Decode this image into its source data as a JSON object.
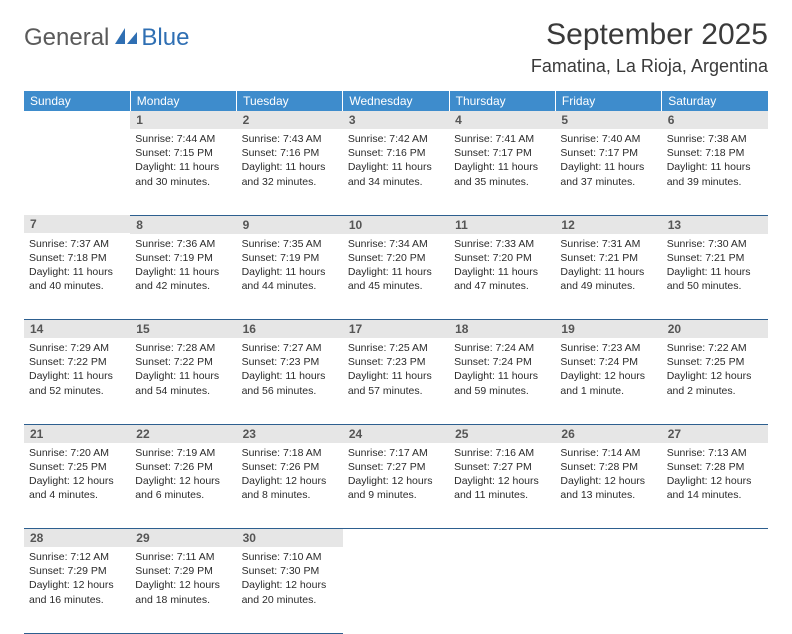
{
  "brand": {
    "text1": "General",
    "text2": "Blue"
  },
  "title": "September 2025",
  "location": "Famatina, La Rioja, Argentina",
  "colors": {
    "header_bg": "#3e8ccc",
    "header_text": "#ffffff",
    "daynum_bg": "#e6e6e6",
    "daynum_text": "#555555",
    "border": "#2d5f8f",
    "brand_gray": "#5a5a5a",
    "brand_blue": "#2f6fb3"
  },
  "typography": {
    "title_fontsize": 30,
    "location_fontsize": 18,
    "weekday_fontsize": 12,
    "daynum_fontsize": 12,
    "cell_fontsize": 10.5
  },
  "weekdays": [
    "Sunday",
    "Monday",
    "Tuesday",
    "Wednesday",
    "Thursday",
    "Friday",
    "Saturday"
  ],
  "weeks": [
    [
      null,
      {
        "n": "1",
        "sr": "Sunrise: 7:44 AM",
        "ss": "Sunset: 7:15 PM",
        "dl": "Daylight: 11 hours and 30 minutes."
      },
      {
        "n": "2",
        "sr": "Sunrise: 7:43 AM",
        "ss": "Sunset: 7:16 PM",
        "dl": "Daylight: 11 hours and 32 minutes."
      },
      {
        "n": "3",
        "sr": "Sunrise: 7:42 AM",
        "ss": "Sunset: 7:16 PM",
        "dl": "Daylight: 11 hours and 34 minutes."
      },
      {
        "n": "4",
        "sr": "Sunrise: 7:41 AM",
        "ss": "Sunset: 7:17 PM",
        "dl": "Daylight: 11 hours and 35 minutes."
      },
      {
        "n": "5",
        "sr": "Sunrise: 7:40 AM",
        "ss": "Sunset: 7:17 PM",
        "dl": "Daylight: 11 hours and 37 minutes."
      },
      {
        "n": "6",
        "sr": "Sunrise: 7:38 AM",
        "ss": "Sunset: 7:18 PM",
        "dl": "Daylight: 11 hours and 39 minutes."
      }
    ],
    [
      {
        "n": "7",
        "sr": "Sunrise: 7:37 AM",
        "ss": "Sunset: 7:18 PM",
        "dl": "Daylight: 11 hours and 40 minutes."
      },
      {
        "n": "8",
        "sr": "Sunrise: 7:36 AM",
        "ss": "Sunset: 7:19 PM",
        "dl": "Daylight: 11 hours and 42 minutes."
      },
      {
        "n": "9",
        "sr": "Sunrise: 7:35 AM",
        "ss": "Sunset: 7:19 PM",
        "dl": "Daylight: 11 hours and 44 minutes."
      },
      {
        "n": "10",
        "sr": "Sunrise: 7:34 AM",
        "ss": "Sunset: 7:20 PM",
        "dl": "Daylight: 11 hours and 45 minutes."
      },
      {
        "n": "11",
        "sr": "Sunrise: 7:33 AM",
        "ss": "Sunset: 7:20 PM",
        "dl": "Daylight: 11 hours and 47 minutes."
      },
      {
        "n": "12",
        "sr": "Sunrise: 7:31 AM",
        "ss": "Sunset: 7:21 PM",
        "dl": "Daylight: 11 hours and 49 minutes."
      },
      {
        "n": "13",
        "sr": "Sunrise: 7:30 AM",
        "ss": "Sunset: 7:21 PM",
        "dl": "Daylight: 11 hours and 50 minutes."
      }
    ],
    [
      {
        "n": "14",
        "sr": "Sunrise: 7:29 AM",
        "ss": "Sunset: 7:22 PM",
        "dl": "Daylight: 11 hours and 52 minutes."
      },
      {
        "n": "15",
        "sr": "Sunrise: 7:28 AM",
        "ss": "Sunset: 7:22 PM",
        "dl": "Daylight: 11 hours and 54 minutes."
      },
      {
        "n": "16",
        "sr": "Sunrise: 7:27 AM",
        "ss": "Sunset: 7:23 PM",
        "dl": "Daylight: 11 hours and 56 minutes."
      },
      {
        "n": "17",
        "sr": "Sunrise: 7:25 AM",
        "ss": "Sunset: 7:23 PM",
        "dl": "Daylight: 11 hours and 57 minutes."
      },
      {
        "n": "18",
        "sr": "Sunrise: 7:24 AM",
        "ss": "Sunset: 7:24 PM",
        "dl": "Daylight: 11 hours and 59 minutes."
      },
      {
        "n": "19",
        "sr": "Sunrise: 7:23 AM",
        "ss": "Sunset: 7:24 PM",
        "dl": "Daylight: 12 hours and 1 minute."
      },
      {
        "n": "20",
        "sr": "Sunrise: 7:22 AM",
        "ss": "Sunset: 7:25 PM",
        "dl": "Daylight: 12 hours and 2 minutes."
      }
    ],
    [
      {
        "n": "21",
        "sr": "Sunrise: 7:20 AM",
        "ss": "Sunset: 7:25 PM",
        "dl": "Daylight: 12 hours and 4 minutes."
      },
      {
        "n": "22",
        "sr": "Sunrise: 7:19 AM",
        "ss": "Sunset: 7:26 PM",
        "dl": "Daylight: 12 hours and 6 minutes."
      },
      {
        "n": "23",
        "sr": "Sunrise: 7:18 AM",
        "ss": "Sunset: 7:26 PM",
        "dl": "Daylight: 12 hours and 8 minutes."
      },
      {
        "n": "24",
        "sr": "Sunrise: 7:17 AM",
        "ss": "Sunset: 7:27 PM",
        "dl": "Daylight: 12 hours and 9 minutes."
      },
      {
        "n": "25",
        "sr": "Sunrise: 7:16 AM",
        "ss": "Sunset: 7:27 PM",
        "dl": "Daylight: 12 hours and 11 minutes."
      },
      {
        "n": "26",
        "sr": "Sunrise: 7:14 AM",
        "ss": "Sunset: 7:28 PM",
        "dl": "Daylight: 12 hours and 13 minutes."
      },
      {
        "n": "27",
        "sr": "Sunrise: 7:13 AM",
        "ss": "Sunset: 7:28 PM",
        "dl": "Daylight: 12 hours and 14 minutes."
      }
    ],
    [
      {
        "n": "28",
        "sr": "Sunrise: 7:12 AM",
        "ss": "Sunset: 7:29 PM",
        "dl": "Daylight: 12 hours and 16 minutes."
      },
      {
        "n": "29",
        "sr": "Sunrise: 7:11 AM",
        "ss": "Sunset: 7:29 PM",
        "dl": "Daylight: 12 hours and 18 minutes."
      },
      {
        "n": "30",
        "sr": "Sunrise: 7:10 AM",
        "ss": "Sunset: 7:30 PM",
        "dl": "Daylight: 12 hours and 20 minutes."
      },
      null,
      null,
      null,
      null
    ]
  ]
}
